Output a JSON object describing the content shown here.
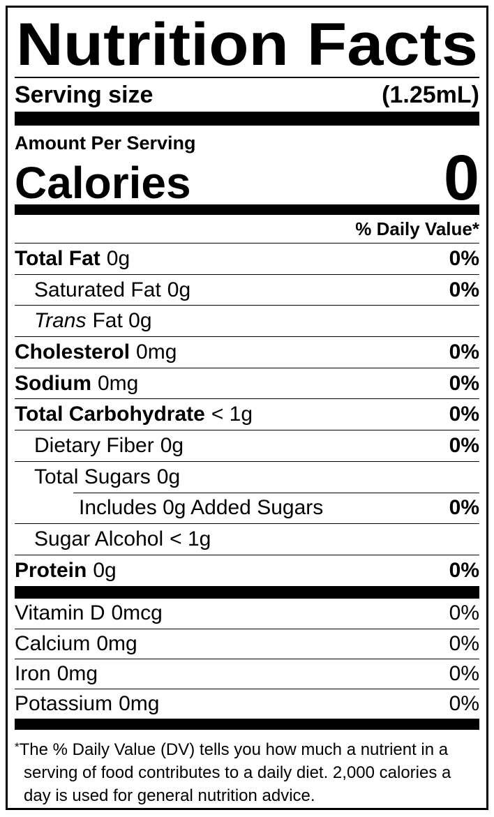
{
  "colors": {
    "ink": "#000000",
    "paper": "#ffffff"
  },
  "label": {
    "title": "Nutrition Facts",
    "serving": {
      "label": "Serving size",
      "value": "(1.25mL)"
    },
    "amount_per_serving": "Amount Per Serving",
    "calories": {
      "label": "Calories",
      "value": "0"
    },
    "daily_value_header": "% Daily Value*",
    "nutrients": [
      {
        "name": "Total Fat",
        "amount": "0g",
        "dv": "0%"
      },
      {
        "name": "Saturated Fat",
        "amount": "0g",
        "dv": "0%"
      },
      {
        "name": "Trans",
        "amount": "Fat 0g",
        "dv": ""
      },
      {
        "name": "Cholesterol",
        "amount": "0mg",
        "dv": "0%"
      },
      {
        "name": "Sodium",
        "amount": "0mg",
        "dv": "0%"
      },
      {
        "name": "Total Carbohydrate",
        "amount": "< 1g",
        "dv": "0%"
      },
      {
        "name": "Dietary Fiber",
        "amount": "0g",
        "dv": "0%"
      },
      {
        "name": "Total Sugars",
        "amount": "0g",
        "dv": ""
      },
      {
        "name": "Includes 0g Added Sugars",
        "amount": "",
        "dv": "0%"
      },
      {
        "name": "Sugar Alcohol",
        "amount": "< 1g",
        "dv": ""
      },
      {
        "name": "Protein",
        "amount": "0g",
        "dv": "0%"
      }
    ],
    "micronutrients": [
      {
        "name": "Vitamin D",
        "amount": "0mcg",
        "dv": "0%"
      },
      {
        "name": "Calcium",
        "amount": "0mg",
        "dv": "0%"
      },
      {
        "name": "Iron",
        "amount": "0mg",
        "dv": "0%"
      },
      {
        "name": "Potassium",
        "amount": "0mg",
        "dv": "0%"
      }
    ],
    "footnote": {
      "marker": "*",
      "text": "The % Daily Value (DV) tells you how much a nutrient in a serving of food contributes to a daily diet. 2,000 calories a day is used for general nutrition advice."
    }
  }
}
